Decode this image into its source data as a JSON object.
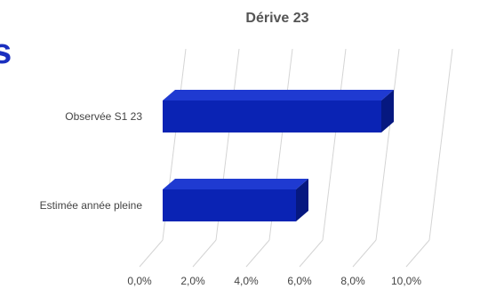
{
  "heading_fragment": "s",
  "chart_data": {
    "type": "bar",
    "orientation": "horizontal",
    "style": "3d",
    "title": "Dérive 23",
    "categories": [
      "Observée S1 23",
      "Estimée année pleine"
    ],
    "series": [
      {
        "values": [
          0.082,
          0.05
        ],
        "color": "#0a23b4"
      }
    ],
    "xlim": [
      0,
      0.1
    ],
    "x_ticks": [
      0,
      0.02,
      0.04,
      0.06,
      0.08,
      0.1
    ],
    "x_tick_labels": [
      "0,0%",
      "2,0%",
      "4,0%",
      "6,0%",
      "8,0%",
      "10,0%"
    ],
    "grid": true,
    "legend": "none"
  }
}
